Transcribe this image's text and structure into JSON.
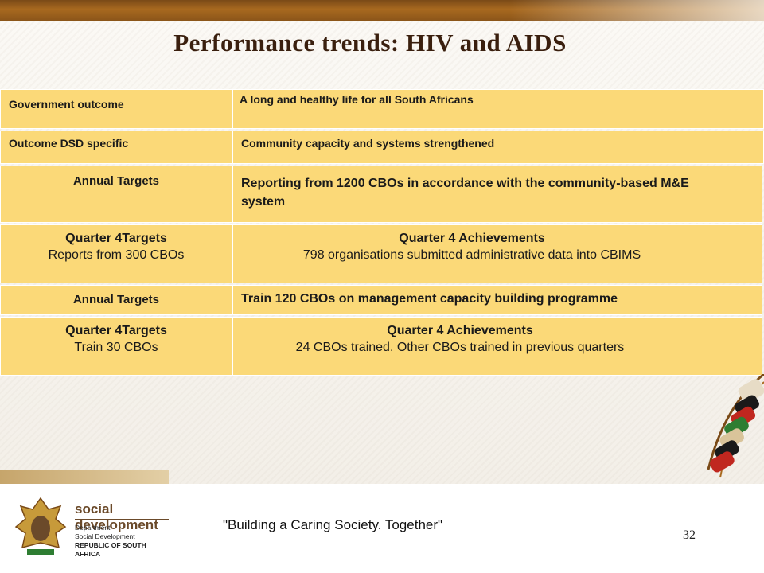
{
  "slide": {
    "title": "Performance trends:  HIV and AIDS",
    "page_number": "32",
    "tagline": "\"Building a Caring Society. Together\""
  },
  "logo": {
    "name": "social development",
    "line1": "Department:",
    "line2": "Social Development",
    "line3": "REPUBLIC OF SOUTH AFRICA"
  },
  "colors": {
    "cell_fill": "#fbd978",
    "title": "#3a1f0e",
    "topbar": "#a8691f"
  },
  "table": {
    "gov_outcome_label": "Government outcome",
    "gov_outcome_value": "A long and healthy life for all South Africans",
    "dsd_outcome_label": "Outcome DSD specific",
    "dsd_outcome_value": "Community capacity and systems strengthened",
    "row1_left": "Annual Targets",
    "row1_right": "Reporting from 1200 CBOs in accordance with the community-based M&E system",
    "row2_left_title": "Quarter 4Targets",
    "row2_left_value": "Reports from 300 CBOs",
    "row2_right_title": "Quarter 4 Achievements",
    "row2_right_value": "798 organisations submitted administrative data into CBIMS",
    "row3_left": "Annual Targets",
    "row3_right": "Train 120 CBOs on management capacity building programme",
    "row4_left_title": "Quarter 4Targets",
    "row4_left_value": "Train 30 CBOs",
    "row4_right_title": "Quarter 4 Achievements",
    "row4_right_value": "24 CBOs trained. Other CBOs trained in previous quarters"
  }
}
